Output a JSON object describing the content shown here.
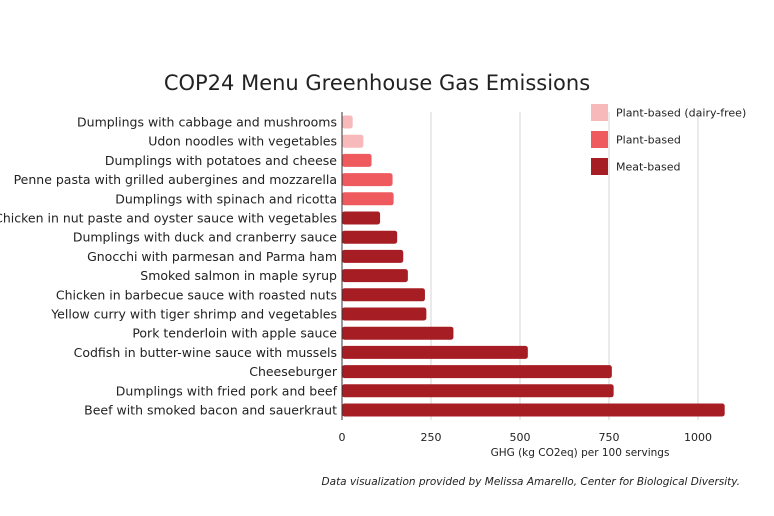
{
  "chart_data": {
    "type": "bar",
    "orientation": "horizontal",
    "title": "COP24 Menu Greenhouse Gas Emissions",
    "xlabel": "GHG (kg CO2eq) per 100 servings",
    "ylabel": "",
    "xlim": [
      0,
      1100
    ],
    "xticks": [
      0,
      250,
      500,
      750,
      1000
    ],
    "grid": true,
    "legend_position": "top-right",
    "legend": [
      {
        "key": "dairy_free",
        "label": "Plant-based (dairy-free)",
        "color": "#f7b9b9"
      },
      {
        "key": "plant",
        "label": "Plant-based",
        "color": "#ef5a5f"
      },
      {
        "key": "meat",
        "label": "Meat-based",
        "color": "#a61e24"
      }
    ],
    "items": [
      {
        "label": "Dumplings with cabbage and mushrooms",
        "value": 30,
        "group": "dairy_free"
      },
      {
        "label": "Udon noodles with vegetables",
        "value": 60,
        "group": "dairy_free"
      },
      {
        "label": "Dumplings with potatoes and cheese",
        "value": 83,
        "group": "plant"
      },
      {
        "label": "Penne pasta with grilled aubergines and mozzarella",
        "value": 142,
        "group": "plant"
      },
      {
        "label": "Dumplings with spinach and ricotta",
        "value": 145,
        "group": "plant"
      },
      {
        "label": "Chicken in nut paste and oyster sauce with vegetables",
        "value": 107,
        "group": "meat"
      },
      {
        "label": "Dumplings with duck and cranberry sauce",
        "value": 155,
        "group": "meat"
      },
      {
        "label": "Gnocchi with parmesan and Parma ham",
        "value": 172,
        "group": "meat"
      },
      {
        "label": "Smoked salmon in maple syrup",
        "value": 185,
        "group": "meat"
      },
      {
        "label": "Chicken in barbecue sauce with roasted nuts",
        "value": 233,
        "group": "meat"
      },
      {
        "label": "Yellow curry with tiger shrimp and vegetables",
        "value": 237,
        "group": "meat"
      },
      {
        "label": "Pork tenderloin with apple sauce",
        "value": 313,
        "group": "meat"
      },
      {
        "label": "Codfish in butter-wine sauce with mussels",
        "value": 522,
        "group": "meat"
      },
      {
        "label": "Cheeseburger",
        "value": 758,
        "group": "meat"
      },
      {
        "label": "Dumplings with fried pork and beef",
        "value": 763,
        "group": "meat"
      },
      {
        "label": "Beef with smoked bacon and sauerkraut",
        "value": 1075,
        "group": "meat"
      }
    ]
  },
  "credit": "Data visualization provided by Melissa Amarello, Center for Biological Diversity."
}
